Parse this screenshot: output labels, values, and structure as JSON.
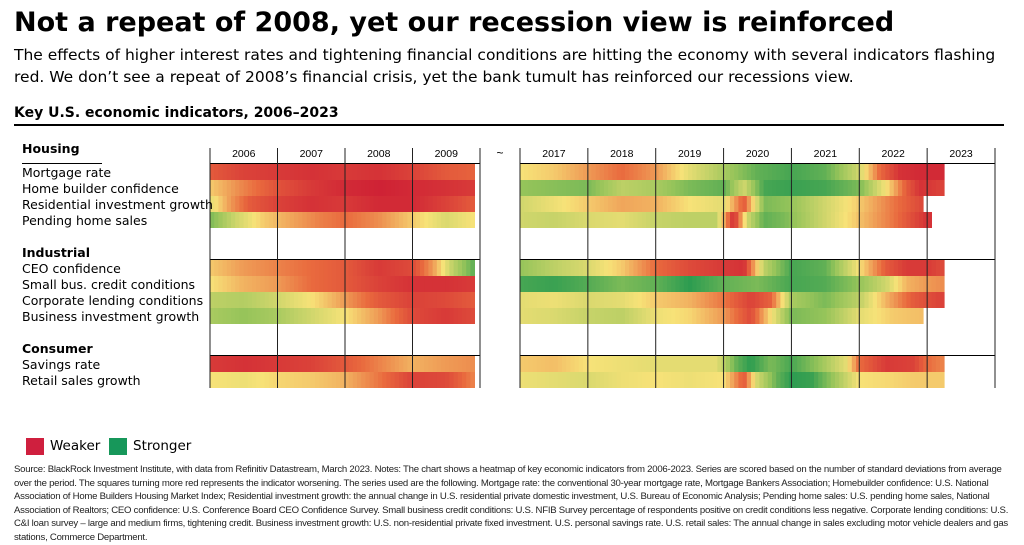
{
  "header": {
    "title": "Not a repeat of 2008, yet our recession view is reinforced",
    "subtitle": "The effects of higher interest rates and tightening financial conditions are hitting the economy with several indicators flashing red. We don’t see a repeat of 2008’s financial crisis, yet the bank tumult has reinforced our recessions view."
  },
  "chart_data": {
    "type": "heatmap",
    "title": "Key U.S. economic indicators, 2006–2023",
    "break_label": "~",
    "years_left": [
      "2006",
      "2007",
      "2008",
      "2009"
    ],
    "years_right": [
      "2017",
      "2018",
      "2019",
      "2020",
      "2021",
      "2022",
      "2023"
    ],
    "groups": [
      {
        "name": "Housing",
        "rows": [
          "Mortgage rate",
          "Home builder confidence",
          "Residential investment growth",
          "Pending home sales"
        ]
      },
      {
        "name": "Industrial",
        "rows": [
          "CEO confidence",
          "Small bus. credit conditions",
          "Corporate lending conditions",
          "Business investment growth"
        ]
      },
      {
        "name": "Consumer",
        "rows": [
          "Savings rate",
          "Retail sales growth"
        ]
      }
    ],
    "scale": "standard deviations from average; -1 = weaker (red), +1 = stronger (green)",
    "series": [
      {
        "name": "Mortgage rate",
        "left": [
          [
            2006.0,
            -0.6
          ],
          [
            2006.5,
            -0.75
          ],
          [
            2007.0,
            -0.8
          ],
          [
            2007.5,
            -0.85
          ],
          [
            2008.0,
            -0.8
          ],
          [
            2008.5,
            -0.85
          ],
          [
            2009.0,
            -0.75
          ],
          [
            2009.5,
            -0.6
          ],
          [
            2009.9,
            -0.55
          ]
        ],
        "right": [
          [
            2017.0,
            0.0
          ],
          [
            2017.5,
            -0.1
          ],
          [
            2018.0,
            -0.3
          ],
          [
            2018.5,
            -0.5
          ],
          [
            2019.0,
            -0.3
          ],
          [
            2019.5,
            0.1
          ],
          [
            2020.0,
            0.4
          ],
          [
            2020.5,
            0.7
          ],
          [
            2021.0,
            0.8
          ],
          [
            2021.5,
            0.7
          ],
          [
            2022.0,
            0.2
          ],
          [
            2022.3,
            -0.5
          ],
          [
            2022.6,
            -0.85
          ],
          [
            2022.9,
            -0.9
          ],
          [
            2023.2,
            -0.9
          ]
        ]
      },
      {
        "name": "Home builder confidence",
        "left": [
          [
            2006.0,
            -0.1
          ],
          [
            2006.5,
            -0.4
          ],
          [
            2007.0,
            -0.65
          ],
          [
            2007.5,
            -0.8
          ],
          [
            2008.0,
            -0.9
          ],
          [
            2008.5,
            -0.95
          ],
          [
            2009.0,
            -0.9
          ],
          [
            2009.5,
            -0.85
          ],
          [
            2009.9,
            -0.8
          ]
        ],
        "right": [
          [
            2017.0,
            0.5
          ],
          [
            2017.5,
            0.55
          ],
          [
            2018.0,
            0.6
          ],
          [
            2018.5,
            0.3
          ],
          [
            2019.0,
            0.4
          ],
          [
            2019.5,
            0.6
          ],
          [
            2020.0,
            0.7
          ],
          [
            2020.3,
            0.2
          ],
          [
            2020.6,
            0.8
          ],
          [
            2021.0,
            0.85
          ],
          [
            2021.5,
            0.8
          ],
          [
            2022.0,
            0.6
          ],
          [
            2022.4,
            0.0
          ],
          [
            2022.7,
            -0.6
          ],
          [
            2022.9,
            -0.85
          ],
          [
            2023.2,
            -0.75
          ]
        ]
      },
      {
        "name": "Residential investment growth",
        "left": [
          [
            2006.0,
            0.1
          ],
          [
            2006.3,
            -0.3
          ],
          [
            2006.6,
            -0.6
          ],
          [
            2007.0,
            -0.75
          ],
          [
            2007.5,
            -0.85
          ],
          [
            2008.0,
            -0.8
          ],
          [
            2008.5,
            -0.9
          ],
          [
            2009.0,
            -0.9
          ],
          [
            2009.5,
            -0.75
          ],
          [
            2009.9,
            -0.6
          ]
        ],
        "right": [
          [
            2017.0,
            0.2
          ],
          [
            2017.5,
            0.05
          ],
          [
            2018.0,
            -0.1
          ],
          [
            2018.5,
            -0.25
          ],
          [
            2019.0,
            -0.2
          ],
          [
            2019.5,
            0.0
          ],
          [
            2020.0,
            0.1
          ],
          [
            2020.3,
            -0.6
          ],
          [
            2020.6,
            0.6
          ],
          [
            2021.0,
            0.5
          ],
          [
            2021.5,
            0.2
          ],
          [
            2022.0,
            -0.1
          ],
          [
            2022.5,
            -0.45
          ],
          [
            2022.9,
            -0.7
          ]
        ]
      },
      {
        "name": "Pending home sales",
        "left": [
          [
            2006.0,
            0.6
          ],
          [
            2006.4,
            0.2
          ],
          [
            2006.8,
            -0.1
          ],
          [
            2007.2,
            -0.25
          ],
          [
            2007.6,
            -0.4
          ],
          [
            2008.0,
            -0.5
          ],
          [
            2008.5,
            -0.35
          ],
          [
            2009.0,
            -0.1
          ],
          [
            2009.5,
            0.15
          ],
          [
            2009.9,
            0.0
          ]
        ],
        "right": [
          [
            2017.0,
            0.2
          ],
          [
            2017.5,
            0.25
          ],
          [
            2018.0,
            0.15
          ],
          [
            2018.5,
            0.1
          ],
          [
            2019.0,
            0.25
          ],
          [
            2019.5,
            0.3
          ],
          [
            2019.9,
            0.3
          ],
          [
            2020.15,
            -0.9
          ],
          [
            2020.35,
            0.2
          ],
          [
            2020.6,
            0.7
          ],
          [
            2020.9,
            0.6
          ],
          [
            2021.2,
            0.4
          ],
          [
            2021.5,
            0.2
          ],
          [
            2021.8,
            0.0
          ],
          [
            2022.1,
            -0.2
          ],
          [
            2022.5,
            -0.45
          ],
          [
            2022.8,
            -0.7
          ],
          [
            2023.0,
            -0.85
          ]
        ]
      },
      {
        "name": "CEO confidence",
        "left": [
          [
            2006.0,
            -0.1
          ],
          [
            2006.5,
            -0.3
          ],
          [
            2007.0,
            -0.4
          ],
          [
            2007.5,
            -0.5
          ],
          [
            2008.0,
            -0.6
          ],
          [
            2008.5,
            -0.8
          ],
          [
            2009.0,
            -0.7
          ],
          [
            2009.3,
            -0.3
          ],
          [
            2009.6,
            0.3
          ],
          [
            2009.9,
            0.7
          ]
        ],
        "right": [
          [
            2017.0,
            0.5
          ],
          [
            2017.5,
            0.3
          ],
          [
            2018.0,
            0.15
          ],
          [
            2018.5,
            -0.1
          ],
          [
            2019.0,
            -0.5
          ],
          [
            2019.5,
            -0.7
          ],
          [
            2020.0,
            -0.8
          ],
          [
            2020.3,
            -0.85
          ],
          [
            2020.6,
            0.3
          ],
          [
            2021.0,
            0.8
          ],
          [
            2021.5,
            0.7
          ],
          [
            2022.0,
            0.0
          ],
          [
            2022.4,
            -0.6
          ],
          [
            2022.7,
            -0.8
          ],
          [
            2023.0,
            -0.8
          ],
          [
            2023.2,
            -0.7
          ]
        ]
      },
      {
        "name": "Small bus. credit conditions",
        "left": [
          [
            2006.0,
            0.0
          ],
          [
            2006.5,
            -0.2
          ],
          [
            2007.0,
            -0.3
          ],
          [
            2007.5,
            -0.5
          ],
          [
            2008.0,
            -0.6
          ],
          [
            2008.5,
            -0.75
          ],
          [
            2009.0,
            -0.85
          ],
          [
            2009.5,
            -0.85
          ],
          [
            2009.9,
            -0.8
          ]
        ],
        "right": [
          [
            2017.0,
            0.8
          ],
          [
            2017.5,
            0.85
          ],
          [
            2018.0,
            0.75
          ],
          [
            2018.5,
            0.6
          ],
          [
            2019.0,
            0.7
          ],
          [
            2019.5,
            0.9
          ],
          [
            2020.0,
            0.7
          ],
          [
            2020.5,
            0.6
          ],
          [
            2021.0,
            0.8
          ],
          [
            2021.5,
            0.75
          ],
          [
            2022.0,
            0.5
          ],
          [
            2022.4,
            0.2
          ],
          [
            2022.7,
            -0.2
          ],
          [
            2023.0,
            -0.3
          ],
          [
            2023.2,
            -0.35
          ]
        ]
      },
      {
        "name": "Corporate lending conditions",
        "left": [
          [
            2006.0,
            0.3
          ],
          [
            2006.5,
            0.35
          ],
          [
            2007.0,
            0.2
          ],
          [
            2007.5,
            0.0
          ],
          [
            2008.0,
            -0.3
          ],
          [
            2008.5,
            -0.6
          ],
          [
            2009.0,
            -0.75
          ],
          [
            2009.5,
            -0.7
          ],
          [
            2009.9,
            -0.6
          ]
        ],
        "right": [
          [
            2017.0,
            0.1
          ],
          [
            2017.5,
            0.05
          ],
          [
            2018.0,
            0.15
          ],
          [
            2018.5,
            0.1
          ],
          [
            2019.0,
            -0.1
          ],
          [
            2019.5,
            -0.2
          ],
          [
            2020.0,
            -0.45
          ],
          [
            2020.4,
            -0.75
          ],
          [
            2020.7,
            -0.55
          ],
          [
            2021.0,
            0.4
          ],
          [
            2021.5,
            0.6
          ],
          [
            2022.0,
            0.3
          ],
          [
            2022.4,
            -0.2
          ],
          [
            2022.8,
            -0.6
          ],
          [
            2023.2,
            -0.75
          ]
        ]
      },
      {
        "name": "Business investment growth",
        "left": [
          [
            2006.0,
            0.4
          ],
          [
            2006.5,
            0.5
          ],
          [
            2007.0,
            0.4
          ],
          [
            2007.5,
            0.2
          ],
          [
            2008.0,
            0.0
          ],
          [
            2008.5,
            -0.3
          ],
          [
            2009.0,
            -0.7
          ],
          [
            2009.5,
            -0.8
          ],
          [
            2009.9,
            -0.7
          ]
        ],
        "right": [
          [
            2017.0,
            0.1
          ],
          [
            2017.5,
            0.15
          ],
          [
            2018.0,
            0.25
          ],
          [
            2018.5,
            0.3
          ],
          [
            2019.0,
            0.05
          ],
          [
            2019.5,
            -0.05
          ],
          [
            2020.0,
            -0.3
          ],
          [
            2020.4,
            -0.7
          ],
          [
            2020.7,
            0.0
          ],
          [
            2021.0,
            0.6
          ],
          [
            2021.5,
            0.5
          ],
          [
            2022.0,
            0.1
          ],
          [
            2022.5,
            -0.1
          ],
          [
            2022.9,
            -0.15
          ]
        ]
      },
      {
        "name": "Savings rate",
        "left": [
          [
            2006.0,
            -0.8
          ],
          [
            2006.5,
            -0.85
          ],
          [
            2007.0,
            -0.8
          ],
          [
            2007.5,
            -0.75
          ],
          [
            2008.0,
            -0.6
          ],
          [
            2008.5,
            -0.4
          ],
          [
            2009.0,
            -0.2
          ],
          [
            2009.5,
            -0.3
          ],
          [
            2009.9,
            -0.35
          ]
        ],
        "right": [
          [
            2017.0,
            -0.1
          ],
          [
            2017.5,
            -0.15
          ],
          [
            2018.0,
            0.0
          ],
          [
            2018.5,
            0.05
          ],
          [
            2019.0,
            0.1
          ],
          [
            2019.5,
            0.1
          ],
          [
            2019.9,
            0.1
          ],
          [
            2020.2,
            0.7
          ],
          [
            2020.4,
            0.9
          ],
          [
            2020.7,
            0.6
          ],
          [
            2021.0,
            0.8
          ],
          [
            2021.4,
            0.5
          ],
          [
            2021.8,
            0.1
          ],
          [
            2022.0,
            -0.5
          ],
          [
            2022.4,
            -0.8
          ],
          [
            2022.8,
            -0.75
          ],
          [
            2023.0,
            -0.5
          ],
          [
            2023.2,
            -0.4
          ]
        ]
      },
      {
        "name": "Retail sales growth",
        "left": [
          [
            2006.0,
            0.0
          ],
          [
            2006.5,
            0.05
          ],
          [
            2007.0,
            -0.05
          ],
          [
            2007.5,
            -0.1
          ],
          [
            2008.0,
            -0.2
          ],
          [
            2008.5,
            -0.45
          ],
          [
            2009.0,
            -0.75
          ],
          [
            2009.5,
            -0.7
          ],
          [
            2009.9,
            -0.4
          ]
        ],
        "right": [
          [
            2017.0,
            0.05
          ],
          [
            2017.5,
            0.1
          ],
          [
            2018.0,
            0.15
          ],
          [
            2018.5,
            0.05
          ],
          [
            2019.0,
            0.0
          ],
          [
            2019.5,
            0.05
          ],
          [
            2020.0,
            0.0
          ],
          [
            2020.3,
            -0.6
          ],
          [
            2020.5,
            0.2
          ],
          [
            2020.8,
            0.7
          ],
          [
            2021.0,
            0.9
          ],
          [
            2021.3,
            0.85
          ],
          [
            2021.6,
            0.5
          ],
          [
            2022.0,
            0.0
          ],
          [
            2022.5,
            -0.05
          ],
          [
            2022.8,
            -0.1
          ],
          [
            2023.0,
            -0.1
          ],
          [
            2023.2,
            -0.1
          ]
        ]
      }
    ]
  },
  "legend": {
    "weaker": {
      "label": "Weaker",
      "color": "#cf1f3e"
    },
    "stronger": {
      "label": "Stronger",
      "color": "#17975a"
    }
  },
  "source": "Source: BlackRock Investment Institute, with data from Refinitiv Datastream, March 2023. Notes: The chart shows a heatmap of key economic indicators from 2006-2023. Series are scored based on the number of standard deviations from average over the period. The squares turning more red represents the indicator worsening. The series used are the following. Mortgage rate: the conventional 30-year mortgage rate, Mortgage Bankers Association; Homebuilder confidence: U.S. National Association of Home Builders Housing Market Index; Residential investment growth: the annual change in U.S. residential private domestic investment, U.S. Bureau of Economic Analysis; Pending home sales: U.S. pending home sales, National Association of Realtors; CEO confidence: U.S. Conference Board CEO Confidence Survey. Small business credit conditions: U.S. NFIB Survey percentage of respondents positive on credit conditions less negative. Corporate lending conditions: U.S. C&I loan survey – large and medium firms, tightening credit. Business investment growth: U.S. non-residential private fixed investment. U.S. personal savings rate. U.S. retail sales: The annual change in sales excluding motor vehicle dealers and gas stations, Commerce Department."
}
